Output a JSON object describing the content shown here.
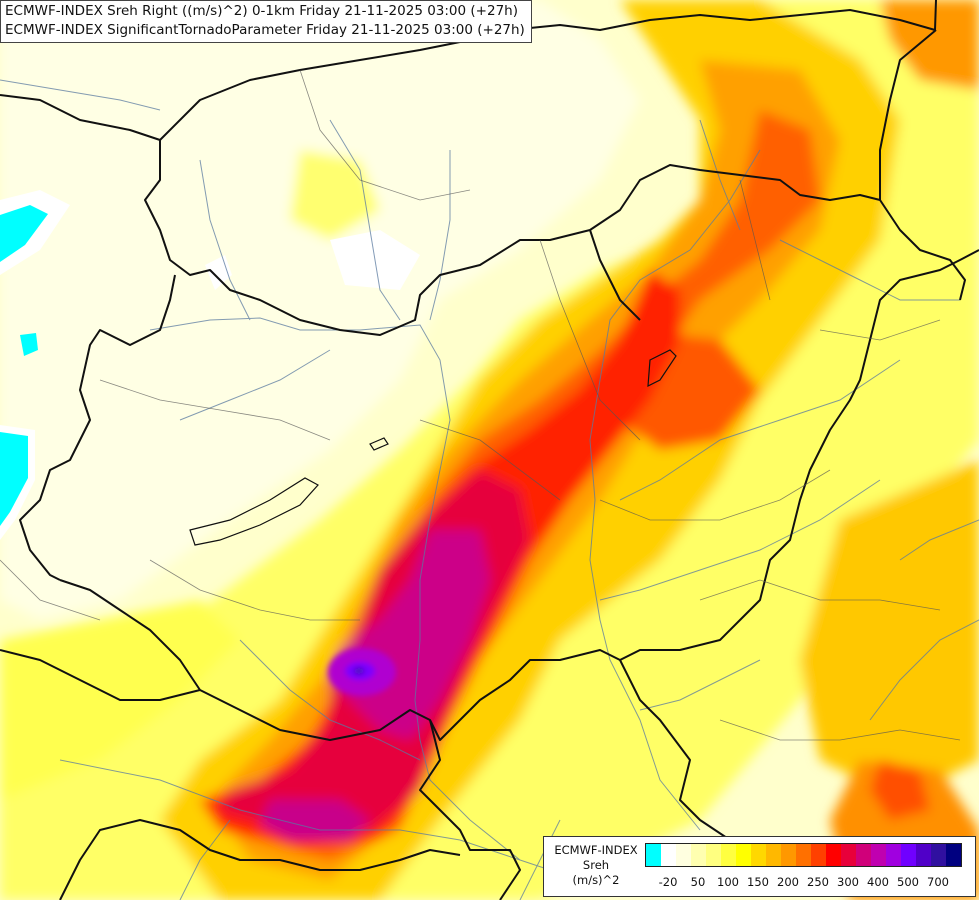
{
  "title": {
    "line1": "ECMWF-INDEX Sreh Right ((m/s)^2) 0-1km Friday 21-11-2025 03:00 (+27h)",
    "line2": "ECMWF-INDEX SignificantTornadoParameter Friday 21-11-2025 03:00 (+27h)"
  },
  "legend": {
    "line1": "ECMWF-INDEX",
    "line2": "Sreh",
    "line3": "(m/s)^2",
    "colors": [
      "#00ffff",
      "#ffffff",
      "#ffffe0",
      "#ffffb0",
      "#ffff80",
      "#ffff40",
      "#ffff00",
      "#ffd800",
      "#ffb800",
      "#ff9800",
      "#ff7000",
      "#ff4000",
      "#ff0000",
      "#e8003a",
      "#d0007a",
      "#c000b0",
      "#a000e0",
      "#7000ff",
      "#5000c8",
      "#3010a0",
      "#000080"
    ],
    "tick_labels": [
      {
        "label": "-20",
        "index": 0.5
      },
      {
        "label": "50",
        "index": 2.5
      },
      {
        "label": "100",
        "index": 4.5
      },
      {
        "label": "150",
        "index": 6.5
      },
      {
        "label": "200",
        "index": 8.5
      },
      {
        "label": "250",
        "index": 10.5
      },
      {
        "label": "300",
        "index": 12.5
      },
      {
        "label": "400",
        "index": 14.5
      },
      {
        "label": "500",
        "index": 16.5
      },
      {
        "label": "700",
        "index": 18.5
      }
    ]
  },
  "colors": {
    "background": "#ffffcc",
    "borders": "#111111",
    "rivers": "#5a7aa0"
  }
}
